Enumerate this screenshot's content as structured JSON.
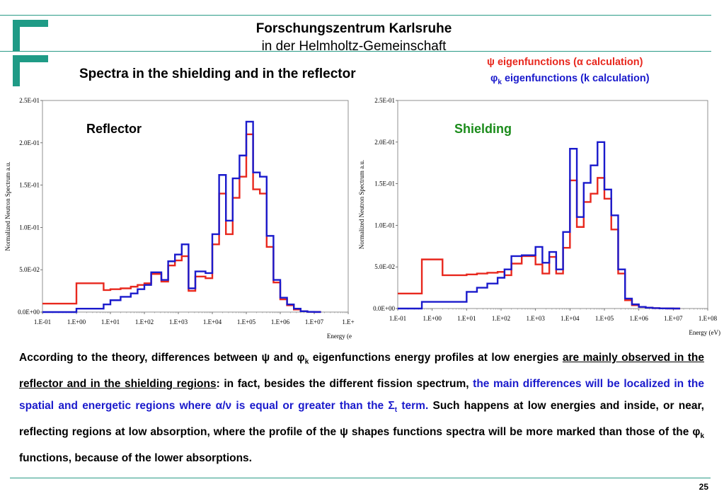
{
  "header": {
    "org_title": "Forschungszentrum Karlsruhe",
    "org_subtitle": "in der Helmholtz-Gemeinschaft",
    "slide_title": "Spectra in the shielding and in the reflector",
    "legend": {
      "psi_symbol": "ψ",
      "psi_text": " eigenfunctions (α calculation)",
      "phi_symbol": "φ",
      "phi_sub": "k",
      "phi_text": " eigenfunctions (k calculation)"
    }
  },
  "colors": {
    "psi": "#e8281e",
    "phi": "#1a1acc",
    "accent": "#1f9b86",
    "shielding_label": "#1b8c1b"
  },
  "chart_data": [
    {
      "type": "line",
      "title": "Reflector",
      "xlabel": "Energy (e",
      "ylabel": "Normalized Neutron Spectrum a.u.",
      "x_scale": "log",
      "xlim_exp": [
        -1,
        8
      ],
      "ylim": [
        0,
        0.25
      ],
      "xticks": [
        "1.E-01",
        "1.E+00",
        "1.E+01",
        "1.E+02",
        "1.E+03",
        "1.E+04",
        "1.E+05",
        "1.E+06",
        "1.E+07",
        "1.E+"
      ],
      "yticks": [
        "0.0E+00",
        "5.0E-02",
        "1.0E-01",
        "1.5E-01",
        "2.0E-01",
        "2.5E-01"
      ],
      "bin_edges_exp": [
        -1,
        0,
        0.8,
        1.0,
        1.3,
        1.6,
        1.8,
        2.0,
        2.2,
        2.5,
        2.7,
        2.9,
        3.1,
        3.3,
        3.5,
        3.8,
        4.0,
        4.2,
        4.4,
        4.6,
        4.8,
        5.0,
        5.2,
        5.4,
        5.6,
        5.8,
        6.0,
        6.2,
        6.4,
        6.6,
        6.8,
        7.0,
        7.2
      ],
      "series": [
        {
          "name": "ψ",
          "values": [
            0.01,
            0.034,
            0.026,
            0.027,
            0.028,
            0.03,
            0.032,
            0.034,
            0.045,
            0.036,
            0.055,
            0.061,
            0.066,
            0.025,
            0.042,
            0.04,
            0.08,
            0.14,
            0.092,
            0.135,
            0.16,
            0.21,
            0.145,
            0.14,
            0.077,
            0.035,
            0.015,
            0.008,
            0.003,
            0.001,
            0.0003,
            0.0001
          ]
        },
        {
          "name": "φk",
          "values": [
            0.0,
            0.004,
            0.009,
            0.014,
            0.018,
            0.022,
            0.027,
            0.032,
            0.047,
            0.038,
            0.06,
            0.068,
            0.08,
            0.028,
            0.048,
            0.046,
            0.092,
            0.162,
            0.108,
            0.158,
            0.185,
            0.225,
            0.165,
            0.16,
            0.09,
            0.038,
            0.017,
            0.009,
            0.004,
            0.001,
            0.0003,
            0.0001
          ]
        }
      ]
    },
    {
      "type": "line",
      "title": "Shielding",
      "xlabel": "Energy (eV)",
      "ylabel": "Normalized Neutron Spectrum a.u.",
      "x_scale": "log",
      "xlim_exp": [
        -1,
        8
      ],
      "ylim": [
        0,
        0.25
      ],
      "xticks": [
        "1.E-01",
        "1.E+00",
        "1.E+01",
        "1.E+02",
        "1.E+03",
        "1.E+04",
        "1.E+05",
        "1.E+06",
        "1.E+07",
        "1.E+08"
      ],
      "yticks": [
        "0.0E+00",
        "5.0E-02",
        "1.0E-01",
        "1.5E-01",
        "2.0E-01",
        "2.5E-01"
      ],
      "bin_edges_exp": [
        -1,
        -0.3,
        0.3,
        1.0,
        1.3,
        1.6,
        1.9,
        2.1,
        2.3,
        2.6,
        3.0,
        3.2,
        3.4,
        3.6,
        3.8,
        4.0,
        4.2,
        4.4,
        4.6,
        4.8,
        5.0,
        5.2,
        5.4,
        5.6,
        5.8,
        6.0,
        6.2,
        6.4,
        6.6,
        6.8,
        7.0,
        7.2
      ],
      "series": [
        {
          "name": "ψ",
          "values": [
            0.018,
            0.059,
            0.04,
            0.041,
            0.042,
            0.043,
            0.044,
            0.04,
            0.054,
            0.063,
            0.053,
            0.042,
            0.062,
            0.042,
            0.073,
            0.154,
            0.098,
            0.128,
            0.138,
            0.157,
            0.132,
            0.095,
            0.042,
            0.01,
            0.004,
            0.002,
            0.001,
            0.0005,
            0.0002,
            0.0001,
            0.0
          ]
        },
        {
          "name": "φk",
          "values": [
            0.0,
            0.008,
            0.008,
            0.02,
            0.025,
            0.03,
            0.037,
            0.047,
            0.063,
            0.064,
            0.074,
            0.055,
            0.068,
            0.047,
            0.092,
            0.192,
            0.11,
            0.151,
            0.172,
            0.2,
            0.143,
            0.112,
            0.047,
            0.012,
            0.005,
            0.002,
            0.001,
            0.0005,
            0.0002,
            0.0001,
            0.0
          ]
        }
      ]
    }
  ],
  "body": {
    "p1a": "According to the theory, differences between ",
    "psi": "ψ",
    "p1b": " and ",
    "phi": "φ",
    "k": "k",
    "p1c": " eigenfunctions energy profiles at low energies ",
    "u1": "are mainly observed in the reflector and in the shielding regions",
    "p2": ": in fact, besides the different fission spectrum, ",
    "blue1": "the main differences will be localized in the spatial and energetic regions where α/ν is equal or greater than the Σ",
    "blue_sub": "t",
    "blue2": " term.",
    "p3": " Such happens at low energies and inside, or near, reflecting regions at low absorption, where the profile of the ",
    "psi2": "ψ",
    "p4": " shapes functions spectra will be more marked than those of the ",
    "phi2": "φ",
    "k2": "k",
    "p5": " functions, because of the lower absorptions."
  },
  "footer": {
    "page_number": "25"
  }
}
